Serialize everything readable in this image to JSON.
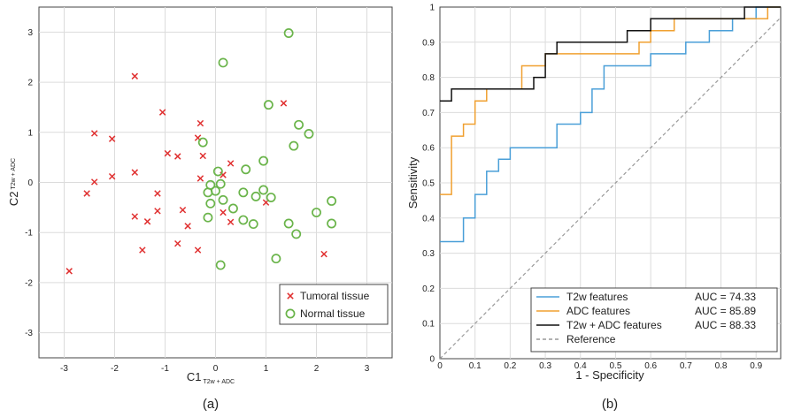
{
  "chart_data": [
    {
      "type": "scatter",
      "caption": "(a)",
      "xlabel": "C1",
      "xlabel_sub": "T2w + ADC",
      "ylabel": "C2",
      "ylabel_sub": "T2w + ADC",
      "xlim": [
        -3.5,
        3.5
      ],
      "ylim": [
        -3.5,
        3.5
      ],
      "xticks": [
        -3,
        -2,
        -1,
        0,
        1,
        2,
        3
      ],
      "yticks": [
        -3,
        -2,
        -1,
        0,
        1,
        2,
        3
      ],
      "grid": true,
      "legend_position": "bottom-right",
      "series": [
        {
          "name": "Tumoral tissue",
          "marker": "x",
          "color": "#e03030",
          "points": [
            [
              -2.9,
              -1.77
            ],
            [
              -2.55,
              -0.22
            ],
            [
              -2.4,
              0.98
            ],
            [
              -2.4,
              0.01
            ],
            [
              -2.05,
              0.87
            ],
            [
              -2.05,
              0.12
            ],
            [
              -1.6,
              2.12
            ],
            [
              -1.6,
              0.2
            ],
            [
              -1.6,
              -0.68
            ],
            [
              -1.45,
              -1.35
            ],
            [
              -1.35,
              -0.78
            ],
            [
              -1.15,
              -0.22
            ],
            [
              -1.15,
              -0.57
            ],
            [
              -1.05,
              1.4
            ],
            [
              -0.95,
              0.58
            ],
            [
              -0.75,
              0.52
            ],
            [
              -0.75,
              -1.22
            ],
            [
              -0.65,
              -0.55
            ],
            [
              -0.55,
              -0.87
            ],
            [
              -0.35,
              -1.35
            ],
            [
              -0.35,
              0.89
            ],
            [
              -0.3,
              1.18
            ],
            [
              -0.3,
              0.08
            ],
            [
              -0.25,
              0.53
            ],
            [
              0.15,
              0.15
            ],
            [
              0.15,
              -0.6
            ],
            [
              0.3,
              0.38
            ],
            [
              0.3,
              -0.79
            ],
            [
              1.0,
              -0.4
            ],
            [
              1.35,
              1.58
            ],
            [
              2.15,
              -1.43
            ]
          ]
        },
        {
          "name": "Normal tissue",
          "marker": "o",
          "color": "#6ab44a",
          "points": [
            [
              1.45,
              2.98
            ],
            [
              0.15,
              2.39
            ],
            [
              1.05,
              1.55
            ],
            [
              1.65,
              1.15
            ],
            [
              1.85,
              0.97
            ],
            [
              1.55,
              0.73
            ],
            [
              0.95,
              0.43
            ],
            [
              0.6,
              0.26
            ],
            [
              -0.25,
              0.8
            ],
            [
              0.05,
              0.22
            ],
            [
              -0.1,
              -0.05
            ],
            [
              0.1,
              -0.03
            ],
            [
              -0.15,
              -0.2
            ],
            [
              0.0,
              -0.17
            ],
            [
              0.15,
              -0.35
            ],
            [
              -0.1,
              -0.42
            ],
            [
              0.35,
              -0.52
            ],
            [
              -0.15,
              -0.7
            ],
            [
              0.55,
              -0.2
            ],
            [
              0.8,
              -0.28
            ],
            [
              0.95,
              -0.15
            ],
            [
              1.1,
              -0.3
            ],
            [
              0.55,
              -0.75
            ],
            [
              0.75,
              -0.83
            ],
            [
              1.45,
              -0.82
            ],
            [
              1.6,
              -1.03
            ],
            [
              2.0,
              -0.6
            ],
            [
              2.3,
              -0.37
            ],
            [
              2.3,
              -0.82
            ],
            [
              1.2,
              -1.52
            ],
            [
              0.1,
              -1.65
            ]
          ]
        }
      ]
    },
    {
      "type": "line",
      "caption": "(b)",
      "xlabel": "1 - Specificity",
      "ylabel": "Sensitivity",
      "xlim": [
        0,
        0.97
      ],
      "ylim": [
        0,
        1
      ],
      "xticks": [
        0,
        0.1,
        0.2,
        0.3,
        0.4,
        0.5,
        0.6,
        0.7,
        0.8,
        0.9
      ],
      "yticks": [
        0,
        0.1,
        0.2,
        0.3,
        0.4,
        0.5,
        0.6,
        0.7,
        0.8,
        0.9,
        1
      ],
      "tick_labels_x": [
        "0",
        "0.1",
        "0.2",
        "0.3",
        "0.4",
        "0.5",
        "0.6",
        "0.7",
        "0.8",
        "0.9"
      ],
      "tick_labels_y": [
        "0",
        "0.1",
        "0.2",
        "0.3",
        "0.4",
        "0.5",
        "0.6",
        "0.7",
        "0.8",
        "0.9",
        "1"
      ],
      "grid": true,
      "legend_position": "bottom-right",
      "series": [
        {
          "name": "T2w features",
          "auc_label": "AUC = 74.33",
          "color": "#4a9fd8",
          "points": [
            [
              0,
              0.333
            ],
            [
              0.067,
              0.333
            ],
            [
              0.067,
              0.4
            ],
            [
              0.1,
              0.4
            ],
            [
              0.1,
              0.467
            ],
            [
              0.133,
              0.467
            ],
            [
              0.133,
              0.533
            ],
            [
              0.167,
              0.533
            ],
            [
              0.167,
              0.567
            ],
            [
              0.2,
              0.567
            ],
            [
              0.2,
              0.6
            ],
            [
              0.333,
              0.6
            ],
            [
              0.333,
              0.667
            ],
            [
              0.4,
              0.667
            ],
            [
              0.4,
              0.7
            ],
            [
              0.433,
              0.7
            ],
            [
              0.433,
              0.767
            ],
            [
              0.467,
              0.767
            ],
            [
              0.467,
              0.833
            ],
            [
              0.6,
              0.833
            ],
            [
              0.6,
              0.867
            ],
            [
              0.7,
              0.867
            ],
            [
              0.7,
              0.9
            ],
            [
              0.767,
              0.9
            ],
            [
              0.767,
              0.933
            ],
            [
              0.833,
              0.933
            ],
            [
              0.833,
              0.967
            ],
            [
              0.9,
              0.967
            ],
            [
              0.9,
              1
            ],
            [
              0.97,
              1
            ]
          ]
        },
        {
          "name": "ADC features",
          "auc_label": "AUC = 85.89",
          "color": "#f0a030",
          "points": [
            [
              0,
              0.467
            ],
            [
              0.033,
              0.467
            ],
            [
              0.033,
              0.633
            ],
            [
              0.067,
              0.633
            ],
            [
              0.067,
              0.667
            ],
            [
              0.1,
              0.667
            ],
            [
              0.1,
              0.733
            ],
            [
              0.133,
              0.733
            ],
            [
              0.133,
              0.767
            ],
            [
              0.233,
              0.767
            ],
            [
              0.233,
              0.833
            ],
            [
              0.3,
              0.833
            ],
            [
              0.3,
              0.867
            ],
            [
              0.567,
              0.867
            ],
            [
              0.567,
              0.9
            ],
            [
              0.6,
              0.9
            ],
            [
              0.6,
              0.933
            ],
            [
              0.667,
              0.933
            ],
            [
              0.667,
              0.967
            ],
            [
              0.933,
              0.967
            ],
            [
              0.933,
              1
            ],
            [
              0.97,
              1
            ]
          ]
        },
        {
          "name": "T2w + ADC features",
          "auc_label": "AUC = 88.33",
          "color": "#111111",
          "points": [
            [
              0,
              0.733
            ],
            [
              0.033,
              0.733
            ],
            [
              0.033,
              0.767
            ],
            [
              0.267,
              0.767
            ],
            [
              0.267,
              0.8
            ],
            [
              0.3,
              0.8
            ],
            [
              0.3,
              0.867
            ],
            [
              0.333,
              0.867
            ],
            [
              0.333,
              0.9
            ],
            [
              0.533,
              0.9
            ],
            [
              0.533,
              0.933
            ],
            [
              0.6,
              0.933
            ],
            [
              0.6,
              0.967
            ],
            [
              0.867,
              0.967
            ],
            [
              0.867,
              1
            ],
            [
              0.97,
              1
            ]
          ]
        },
        {
          "name": "Reference",
          "auc_label": "",
          "color": "#999999",
          "dashed": true,
          "points": [
            [
              0,
              0
            ],
            [
              0.97,
              0.97
            ]
          ]
        }
      ]
    }
  ]
}
